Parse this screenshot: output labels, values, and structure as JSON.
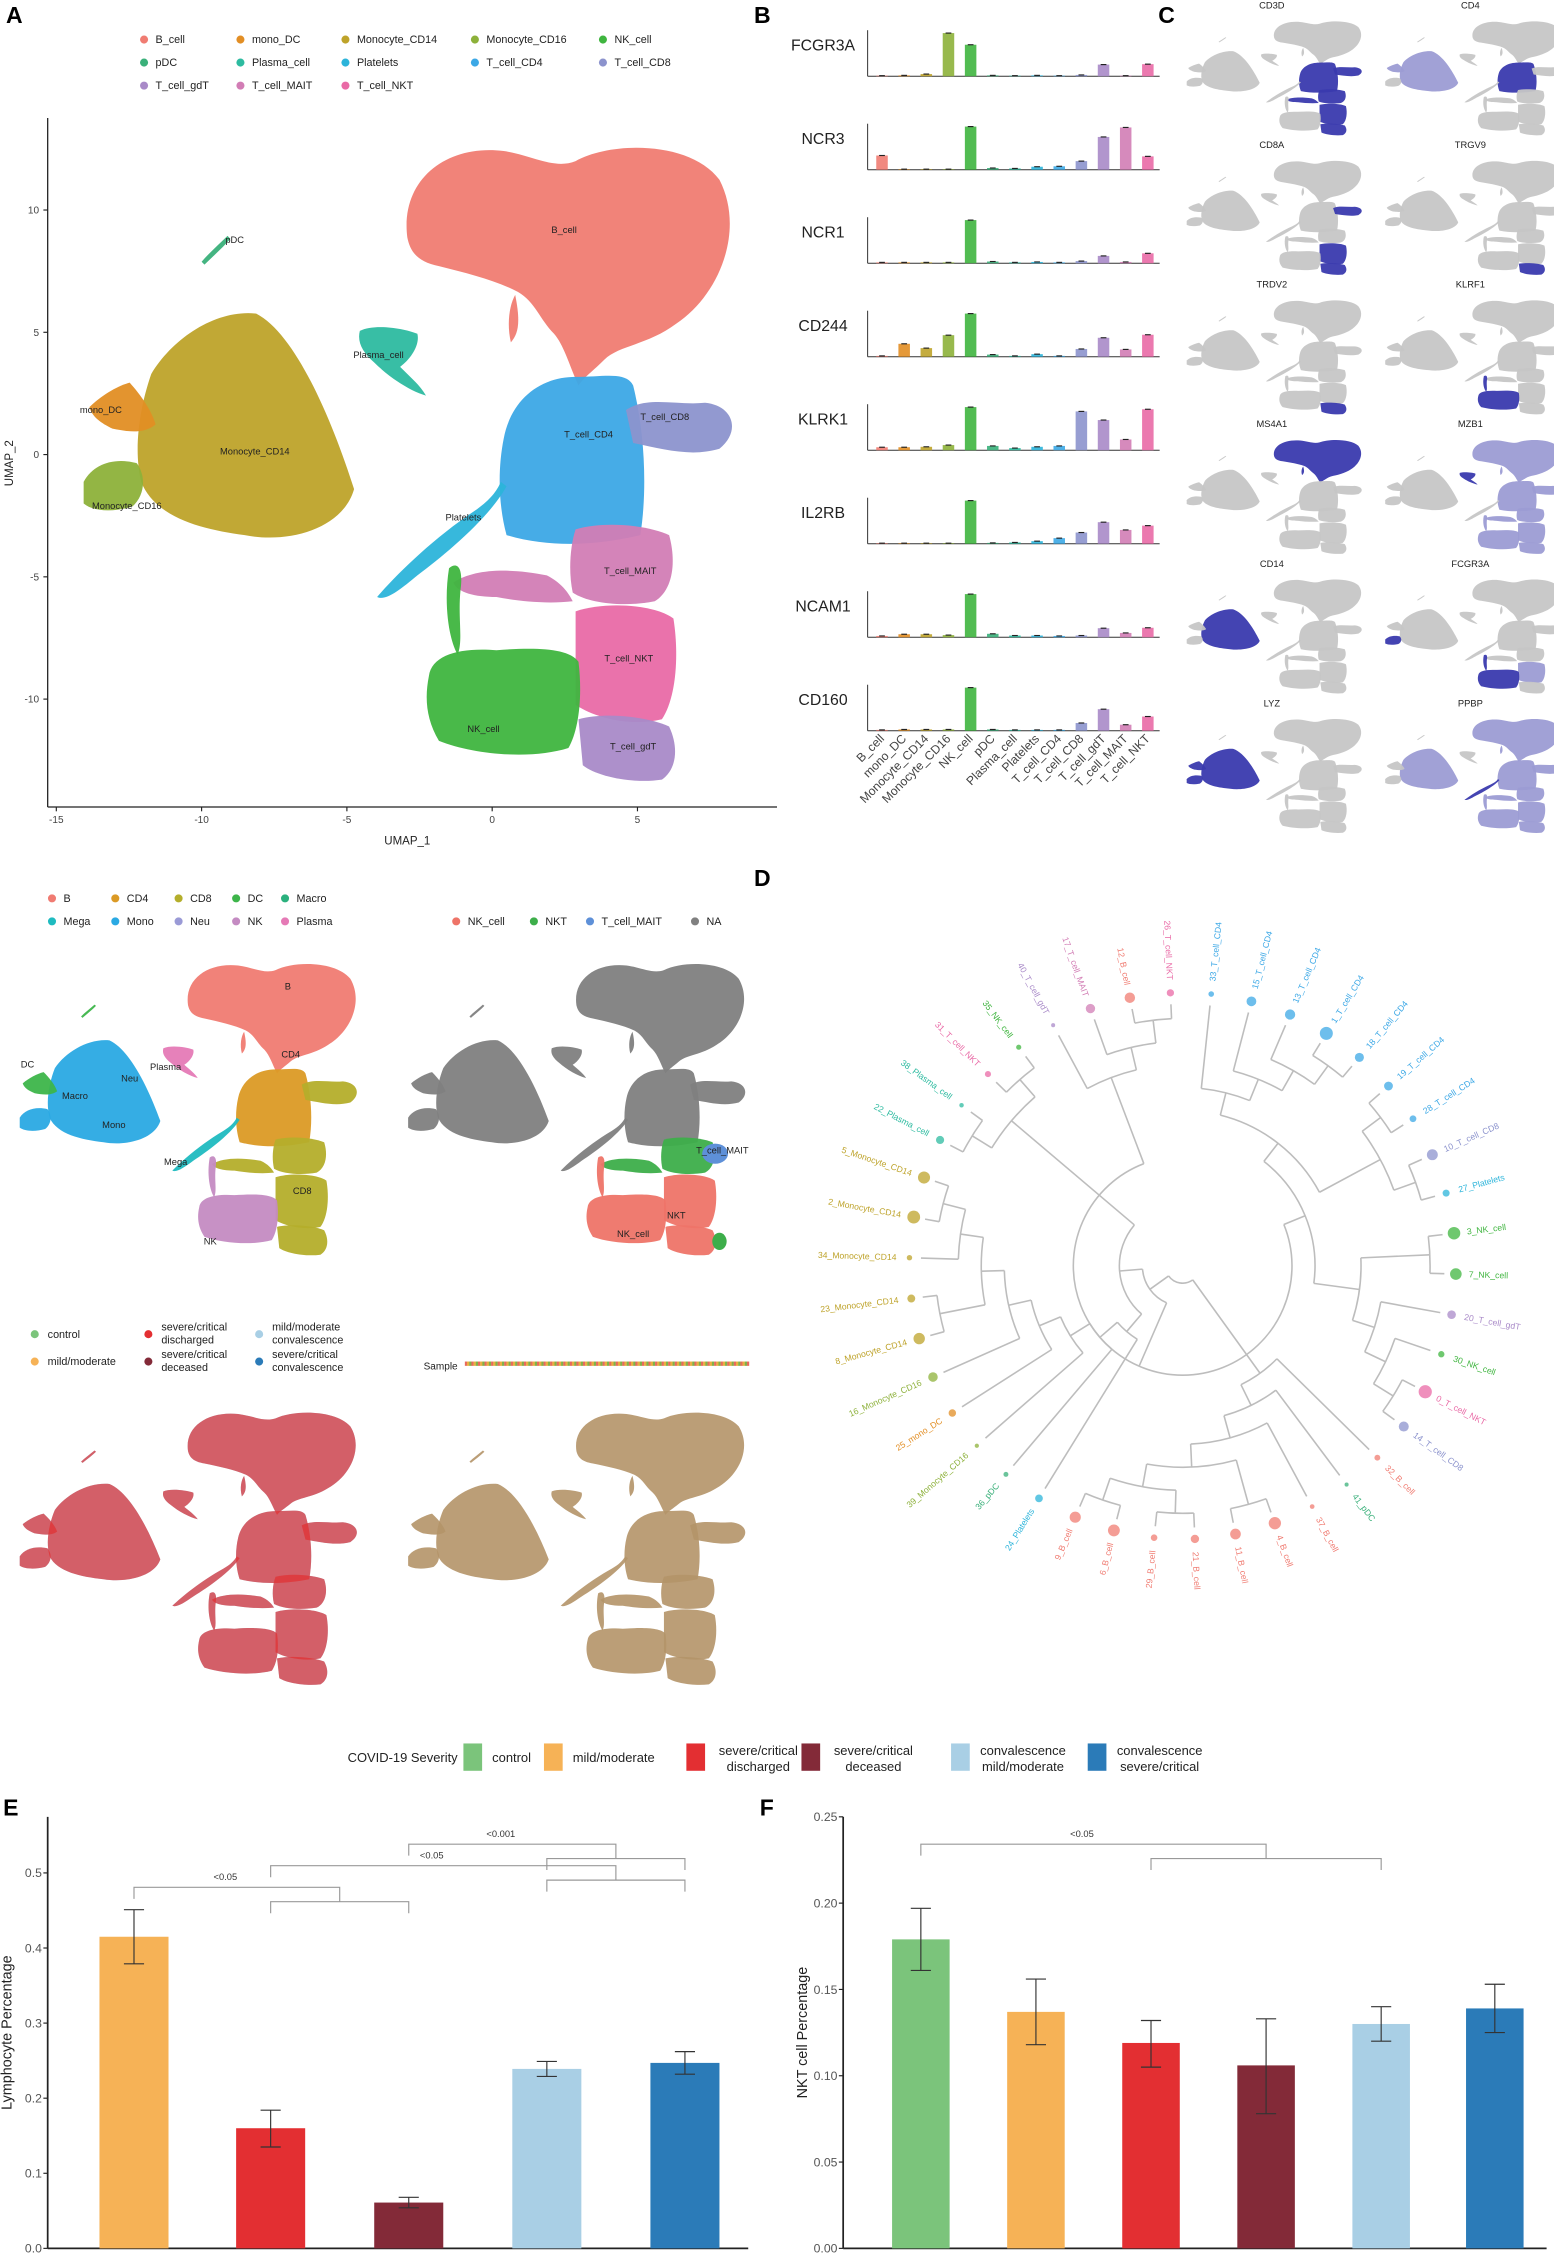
{
  "panel_labels": {
    "A": "A",
    "B": "B",
    "C": "C",
    "D": "D",
    "E": "E",
    "F": "F"
  },
  "panelA": {
    "legend": [
      {
        "name": "B_cell",
        "color": "#F07C72"
      },
      {
        "name": "mono_DC",
        "color": "#E28E24"
      },
      {
        "name": "Monocyte_CD14",
        "color": "#BEA32A"
      },
      {
        "name": "Monocyte_CD16",
        "color": "#8DB13A"
      },
      {
        "name": "NK_cell",
        "color": "#3FB53F"
      },
      {
        "name": "pDC",
        "color": "#3AB07A"
      },
      {
        "name": "Plasma_cell",
        "color": "#2DBBA0"
      },
      {
        "name": "Platelets",
        "color": "#2CB4DA"
      },
      {
        "name": "T_cell_CD4",
        "color": "#3CA8E6"
      },
      {
        "name": "T_cell_CD8",
        "color": "#8C93CD"
      },
      {
        "name": "T_cell_gdT",
        "color": "#A98AC8"
      },
      {
        "name": "T_cell_MAIT",
        "color": "#D27DB5"
      },
      {
        "name": "T_cell_NKT",
        "color": "#E96AA6"
      }
    ],
    "cluster_labels": [
      "B_cell",
      "pDC",
      "Plasma_cell",
      "mono_DC",
      "Monocyte_CD14",
      "Monocyte_CD16",
      "T_cell_CD8",
      "T_cell_CD4",
      "Platelets",
      "T_cell_MAIT",
      "T_cell_NKT",
      "NK_cell",
      "T_cell_gdT"
    ],
    "x_ticks": [
      "-15",
      "-10",
      "-5",
      "0",
      "5"
    ],
    "y_ticks": [
      "10",
      "5",
      "0",
      "-5",
      "-10"
    ],
    "xlabel": "UMAP_1",
    "ylabel": "UMAP_2"
  },
  "panelC": {
    "genes": [
      {
        "gene": "CD3D",
        "high": [
          "T_cell_CD4",
          "T_cell_CD8",
          "T_cell_MAIT",
          "T_cell_NKT",
          "T_cell_gdT"
        ],
        "weak": []
      },
      {
        "gene": "CD4",
        "high": [
          "T_cell_CD4"
        ],
        "weak": [
          "Monocyte_CD14",
          "mono_DC"
        ]
      },
      {
        "gene": "CD8A",
        "high": [
          "T_cell_CD8",
          "T_cell_NKT",
          "T_cell_gdT"
        ],
        "weak": []
      },
      {
        "gene": "TRGV9",
        "high": [
          "T_cell_gdT"
        ],
        "weak": []
      },
      {
        "gene": "TRDV2",
        "high": [
          "T_cell_gdT"
        ],
        "weak": []
      },
      {
        "gene": "KLRF1",
        "high": [
          "NK_cell"
        ],
        "weak": []
      },
      {
        "gene": "MS4A1",
        "high": [
          "B_cell"
        ],
        "weak": []
      },
      {
        "gene": "MZB1",
        "high": [
          "Plasma_cell"
        ],
        "weak": [
          "B_cell",
          "T_cell_CD4",
          "T_cell_CD8",
          "NK_cell",
          "T_cell_NKT",
          "T_cell_MAIT",
          "T_cell_gdT"
        ]
      },
      {
        "gene": "CD14",
        "high": [
          "Monocyte_CD14"
        ],
        "weak": []
      },
      {
        "gene": "FCGR3A",
        "high": [
          "Monocyte_CD16",
          "NK_cell"
        ],
        "weak": [
          "T_cell_NKT"
        ]
      },
      {
        "gene": "LYZ",
        "high": [
          "Monocyte_CD14",
          "mono_DC",
          "Monocyte_CD16"
        ],
        "weak": []
      },
      {
        "gene": "PPBP",
        "high": [
          "Platelets"
        ],
        "weak": [
          "B_cell",
          "T_cell_CD4",
          "T_cell_CD8",
          "NK_cell",
          "T_cell_NKT",
          "T_cell_MAIT",
          "T_cell_gdT",
          "Monocyte_CD14"
        ]
      }
    ]
  },
  "celltype_panel": {
    "legend": [
      {
        "name": "B",
        "color": "#F07B72"
      },
      {
        "name": "CD4",
        "color": "#DB9A25"
      },
      {
        "name": "CD8",
        "color": "#B4AE2B"
      },
      {
        "name": "DC",
        "color": "#3DB54A"
      },
      {
        "name": "Macro",
        "color": "#2BB17E"
      },
      {
        "name": "Mega",
        "color": "#1FBBC0"
      },
      {
        "name": "Mono",
        "color": "#2AA9E3"
      },
      {
        "name": "Neu",
        "color": "#9A9AD6"
      },
      {
        "name": "NK",
        "color": "#C48BC2"
      },
      {
        "name": "Plasma",
        "color": "#E57AB6"
      }
    ],
    "cluster_labels": [
      "B",
      "CD4",
      "CD8",
      "NK",
      "DC",
      "Macro",
      "Neu",
      "Mono",
      "Plasma",
      "Mega"
    ]
  },
  "nk_panel": {
    "legend": [
      {
        "name": "NK_cell",
        "color": "#EE7468"
      },
      {
        "name": "NKT",
        "color": "#3DAE4A"
      },
      {
        "name": "T_cell_MAIT",
        "color": "#5E90D8"
      },
      {
        "name": "NA",
        "color": "#808080"
      }
    ],
    "cluster_labels": [
      "T_cell_MAIT",
      "NKT",
      "NK_cell"
    ]
  },
  "condition_panel": {
    "legend": [
      {
        "name": "control",
        "color": "#7BC47B"
      },
      {
        "name": "mild/moderate",
        "color": "#F6B256"
      },
      {
        "name": "severe/critical discharged",
        "color": "#E32F32"
      },
      {
        "name": "severe/critical deceased",
        "color": "#832A38"
      },
      {
        "name": "mild/moderate convalescence",
        "color": "#A9CFE5"
      },
      {
        "name": "severe/critical convalescence",
        "color": "#2B7BB8"
      }
    ]
  },
  "sample_panel": {
    "legend_title": "Sample"
  },
  "severity_legend": {
    "title": "COVID-19 Severity",
    "items": [
      {
        "name": "control",
        "color": "#7BC47B"
      },
      {
        "name": "mild/moderate",
        "color": "#F6B256"
      },
      {
        "name": "severe/critical discharged",
        "color": "#E32F32"
      },
      {
        "name": "severe/critical deceased",
        "color": "#832A38"
      },
      {
        "name": "convalescence mild/moderate",
        "color": "#A9CFE5"
      },
      {
        "name": "convalescence severe/critical",
        "color": "#2B7BB8"
      }
    ]
  },
  "chart_data": [
    {
      "id": "B",
      "type": "bar",
      "title": "",
      "categories": [
        "B_cell",
        "mono_DC",
        "Monocyte_CD14",
        "Monocyte_CD16",
        "NK_cell",
        "pDC",
        "Plasma_cell",
        "Platelets",
        "T_cell_CD4",
        "T_cell_CD8",
        "T_cell_gdT",
        "T_cell_MAIT",
        "T_cell_NKT"
      ],
      "note": "relative mean expression (fraction of max per gene)",
      "series": [
        {
          "name": "FCGR3A",
          "values": [
            0.01,
            0.02,
            0.05,
            1.0,
            0.73,
            0.02,
            0.01,
            0.02,
            0.01,
            0.03,
            0.27,
            0.01,
            0.28
          ]
        },
        {
          "name": "NCR3",
          "values": [
            0.33,
            0.01,
            0.01,
            0.01,
            1.0,
            0.04,
            0.03,
            0.07,
            0.08,
            0.2,
            0.76,
            0.98,
            0.31
          ]
        },
        {
          "name": "NCR1",
          "values": [
            0.02,
            0.02,
            0.02,
            0.02,
            1.0,
            0.04,
            0.02,
            0.03,
            0.02,
            0.05,
            0.17,
            0.03,
            0.23
          ]
        },
        {
          "name": "CD244",
          "values": [
            0.02,
            0.3,
            0.2,
            0.5,
            1.0,
            0.05,
            0.02,
            0.06,
            0.02,
            0.18,
            0.44,
            0.17,
            0.51
          ]
        },
        {
          "name": "KLRK1",
          "values": [
            0.07,
            0.07,
            0.08,
            0.12,
            1.0,
            0.1,
            0.05,
            0.08,
            0.1,
            0.9,
            0.7,
            0.25,
            0.95
          ]
        },
        {
          "name": "IL2RB",
          "values": [
            0.01,
            0.01,
            0.0,
            0.0,
            1.0,
            0.02,
            0.03,
            0.06,
            0.13,
            0.26,
            0.5,
            0.32,
            0.42
          ]
        },
        {
          "name": "NCAM1",
          "values": [
            0.03,
            0.07,
            0.07,
            0.05,
            1.0,
            0.08,
            0.04,
            0.04,
            0.03,
            0.04,
            0.21,
            0.1,
            0.22
          ]
        },
        {
          "name": "CD160",
          "values": [
            0.02,
            0.03,
            0.03,
            0.03,
            1.0,
            0.03,
            0.02,
            0.02,
            0.02,
            0.18,
            0.5,
            0.14,
            0.33
          ]
        }
      ]
    },
    {
      "id": "E",
      "type": "bar",
      "ylabel": "Lymphocyte Percentage",
      "xlabel": "",
      "ylim": [
        0,
        0.57
      ],
      "y_ticks": [
        "0.0",
        "0.1",
        "0.2",
        "0.3",
        "0.4",
        "0.5"
      ],
      "y_tick_values": [
        0,
        0.1,
        0.2,
        0.3,
        0.4,
        0.5
      ],
      "categories": [
        "mild/moderate",
        "severe/critical discharged",
        "severe/critical deceased",
        "convalescence mild/moderate",
        "convalescence severe/critical"
      ],
      "colors": [
        "#F6B256",
        "#E32F32",
        "#832A38",
        "#A9CFE5",
        "#2B7BB8"
      ],
      "values": [
        0.415,
        0.16,
        0.061,
        0.239,
        0.247
      ],
      "err_low": [
        0.379,
        0.135,
        0.054,
        0.229,
        0.232
      ],
      "err_high": [
        0.451,
        0.184,
        0.068,
        0.249,
        0.262
      ],
      "comparisons": [
        {
          "label": "<0.05",
          "left": [
            0
          ],
          "right": [
            1,
            2
          ]
        },
        {
          "label": "<0.05",
          "left": [
            1
          ],
          "right": [
            3,
            4
          ]
        },
        {
          "label": "<0.001",
          "left": [
            2
          ],
          "right": [
            3,
            4
          ]
        }
      ]
    },
    {
      "id": "F",
      "type": "bar",
      "ylabel": "NKT cell Percentage",
      "xlabel": "",
      "ylim": [
        0,
        0.25
      ],
      "y_ticks": [
        "0.00",
        "0.05",
        "0.10",
        "0.15",
        "0.20",
        "0.25"
      ],
      "y_tick_values": [
        0,
        0.05,
        0.1,
        0.15,
        0.2,
        0.25
      ],
      "categories": [
        "control",
        "mild/moderate",
        "severe/critical discharged",
        "severe/critical deceased",
        "convalescence mild/moderate",
        "convalescence severe/critical"
      ],
      "colors": [
        "#7BC47B",
        "#F6B256",
        "#E32F32",
        "#832A38",
        "#A9CFE5",
        "#2B7BB8"
      ],
      "values": [
        0.179,
        0.137,
        0.119,
        0.106,
        0.13,
        0.139
      ],
      "err_low": [
        0.161,
        0.118,
        0.105,
        0.078,
        0.12,
        0.125
      ],
      "err_high": [
        0.197,
        0.156,
        0.132,
        0.133,
        0.14,
        0.153
      ],
      "comparisons": [
        {
          "label": "<0.05",
          "left": [
            0
          ],
          "right": [
            2,
            3,
            4
          ]
        }
      ]
    },
    {
      "id": "D",
      "type": "dendrogram",
      "leaves": [
        "33_T_cell_CD4",
        "15_T_cell_CD4",
        "13_T_cell_CD4",
        "1_T_cell_CD4",
        "18_T_cell_CD4",
        "19_T_cell_CD4",
        "28_T_cell_CD4",
        "10_T_cell_CD8",
        "27_Platelets",
        "3_NK_cell",
        "7_NK_cell",
        "20_T_cell_gdT",
        "30_NK_cell",
        "0_T_cell_NKT",
        "14_T_cell_CD8",
        "32_B_cell",
        "41_pDC",
        "37_B_cell",
        "4_B_cell",
        "11_B_cell",
        "21_B_cell",
        "29_B_cell",
        "6_B_cell",
        "9_B_cell",
        "24_Platelets",
        "36_pDC",
        "39_Monocyte_CD16",
        "25_mono_DC",
        "16_Monocyte_CD16",
        "8_Monocyte_CD14",
        "23_Monocyte_CD14",
        "34_Monocyte_CD14",
        "2_Monocyte_CD14",
        "5_Monocyte_CD14",
        "22_Plasma_cell",
        "38_Plasma_cell",
        "31_T_cell_NKT",
        "35_NK_cell",
        "40_T_cell_gdT",
        "17_T_cell_MAIT",
        "12_B_cell",
        "26_T_cell_NKT"
      ],
      "tree": [
        [
          [
            [
              38,
              [
                39,
                [
                  40,
                  41
                ]
              ]
            ],
            [
              [
                [
                  0,
                  [
                    1,
                    [
                      2,
                      [
                        3,
                        4
                      ]
                    ]
                  ]
                ],
                [
                  [
                    5,
                    6
                  ],
                  [
                    7,
                    8
                  ]
                ]
              ],
              [
                [
                  9,
                  10
                ],
                [
                  11,
                  [
                    12,
                    [
                      13,
                      14
                    ]
                  ]
                ]
              ]
            ]
          ],
          [
            [
              [
                34,
                35
              ],
              [
                36,
                37
              ]
            ],
            [
              24,
              [
                25,
                [
                  26,
                  [
                    27,
                    [
                      28,
                      [
                        [
                          29,
                          30
                        ],
                        [
                          31,
                          [
                            32,
                            33
                          ]
                        ]
                      ]
                    ]
                  ]
                ]
              ]
            ]
          ]
        ],
        [
          15,
          [
            16,
            [
              17,
              [
                [
                  18,
                  19
                ],
                [
                  [
                    20,
                    21
                  ],
                  [
                    22,
                    23
                  ]
                ]
              ]
            ]
          ]
        ]
      ]
    }
  ]
}
